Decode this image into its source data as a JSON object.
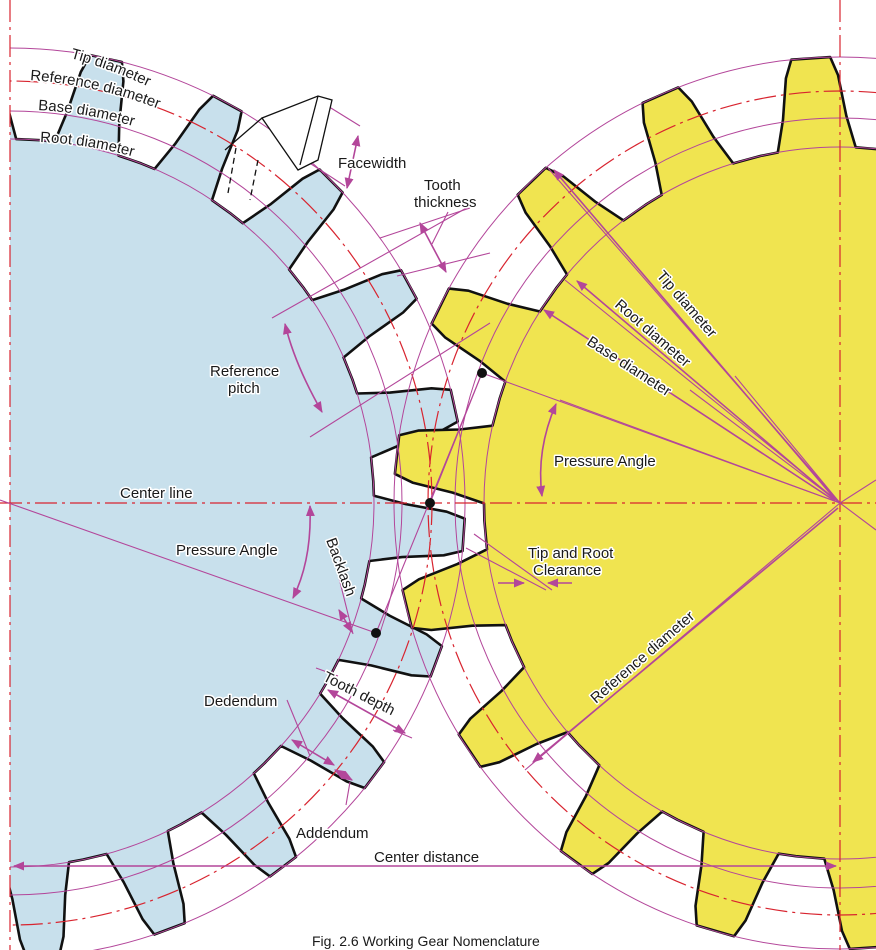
{
  "figure": {
    "caption": "Fig. 2.6 Working Gear Nomenclature",
    "colors": {
      "driver_fill": "#c8e0ec",
      "driven_fill": "#f0e450",
      "construction": "#b3469a",
      "center_lines": "#d8242f",
      "outline": "#111111"
    }
  },
  "labels": {
    "left_gear": {
      "tip_diameter": "Tip diameter",
      "reference_diameter": "Reference diameter",
      "base_diameter": "Base diameter",
      "root_diameter": "Root diameter"
    },
    "facewidth": "Facewidth",
    "tooth_thickness_1": "Tooth",
    "tooth_thickness_2": "thickness",
    "reference_pitch_1": "Reference",
    "reference_pitch_2": "pitch",
    "center_line": "Center line",
    "pressure_angle_left": "Pressure Angle",
    "pressure_angle_right": "Pressure Angle",
    "backlash": "Backlash",
    "tip_root_clearance_1": "Tip and Root",
    "tip_root_clearance_2": "Clearance",
    "tooth_depth": "Tooth depth",
    "dedendum": "Dedendum",
    "addendum": "Addendum",
    "center_distance": "Center distance",
    "right_gear": {
      "tip_diameter": "Tip diameter",
      "root_diameter": "Root diameter",
      "base_diameter": "Base diameter",
      "reference_diameter": "Reference diameter"
    }
  }
}
